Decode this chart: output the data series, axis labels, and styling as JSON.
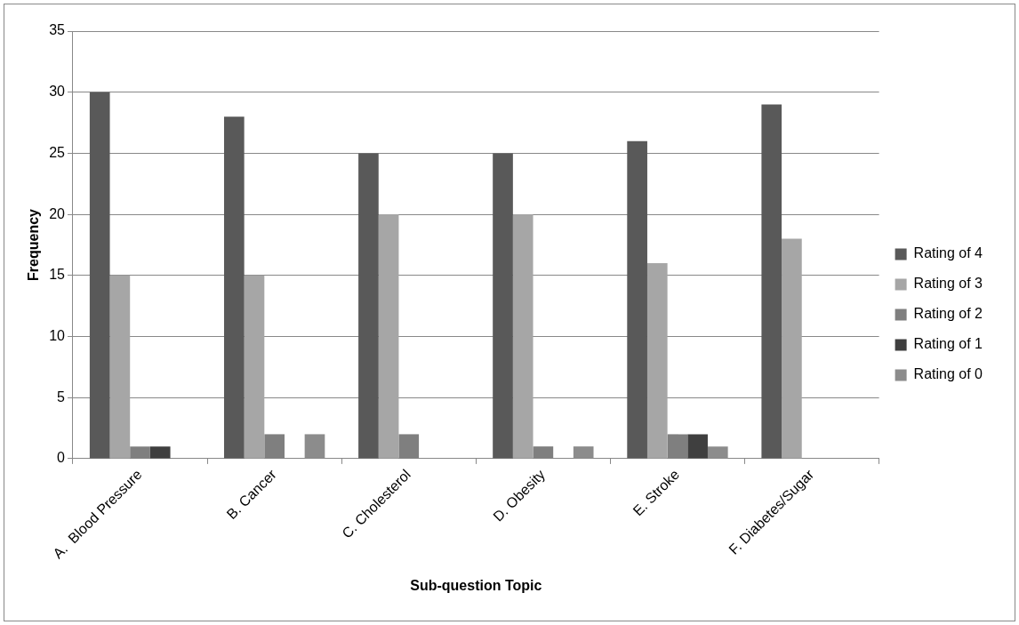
{
  "chart_data": {
    "type": "bar",
    "xlabel": "Sub-question Topic",
    "ylabel": "Frequency",
    "categories": [
      "A.  Blood Pressure",
      "B. Cancer",
      "C. Cholesterol",
      "D. Obesity",
      "E. Stroke",
      "F. Diabetes/Sugar"
    ],
    "series": [
      {
        "name": "Rating of 4",
        "color": "#595959",
        "values": [
          30,
          28,
          25,
          25,
          26,
          29
        ]
      },
      {
        "name": "Rating of 3",
        "color": "#a6a6a6",
        "values": [
          15,
          15,
          20,
          20,
          16,
          18
        ]
      },
      {
        "name": "Rating of 2",
        "color": "#7f7f7f",
        "values": [
          1,
          2,
          2,
          1,
          2,
          0
        ]
      },
      {
        "name": "Rating of 1",
        "color": "#3f3f3f",
        "values": [
          1,
          0,
          0,
          0,
          2,
          0
        ]
      },
      {
        "name": "Rating of 0",
        "color": "#8c8c8c",
        "values": [
          0,
          2,
          0,
          1,
          1,
          0
        ]
      }
    ],
    "ylim": [
      0,
      35
    ],
    "yticks": [
      0,
      5,
      10,
      15,
      20,
      25,
      30,
      35
    ],
    "grid": "y",
    "legend": "right"
  }
}
